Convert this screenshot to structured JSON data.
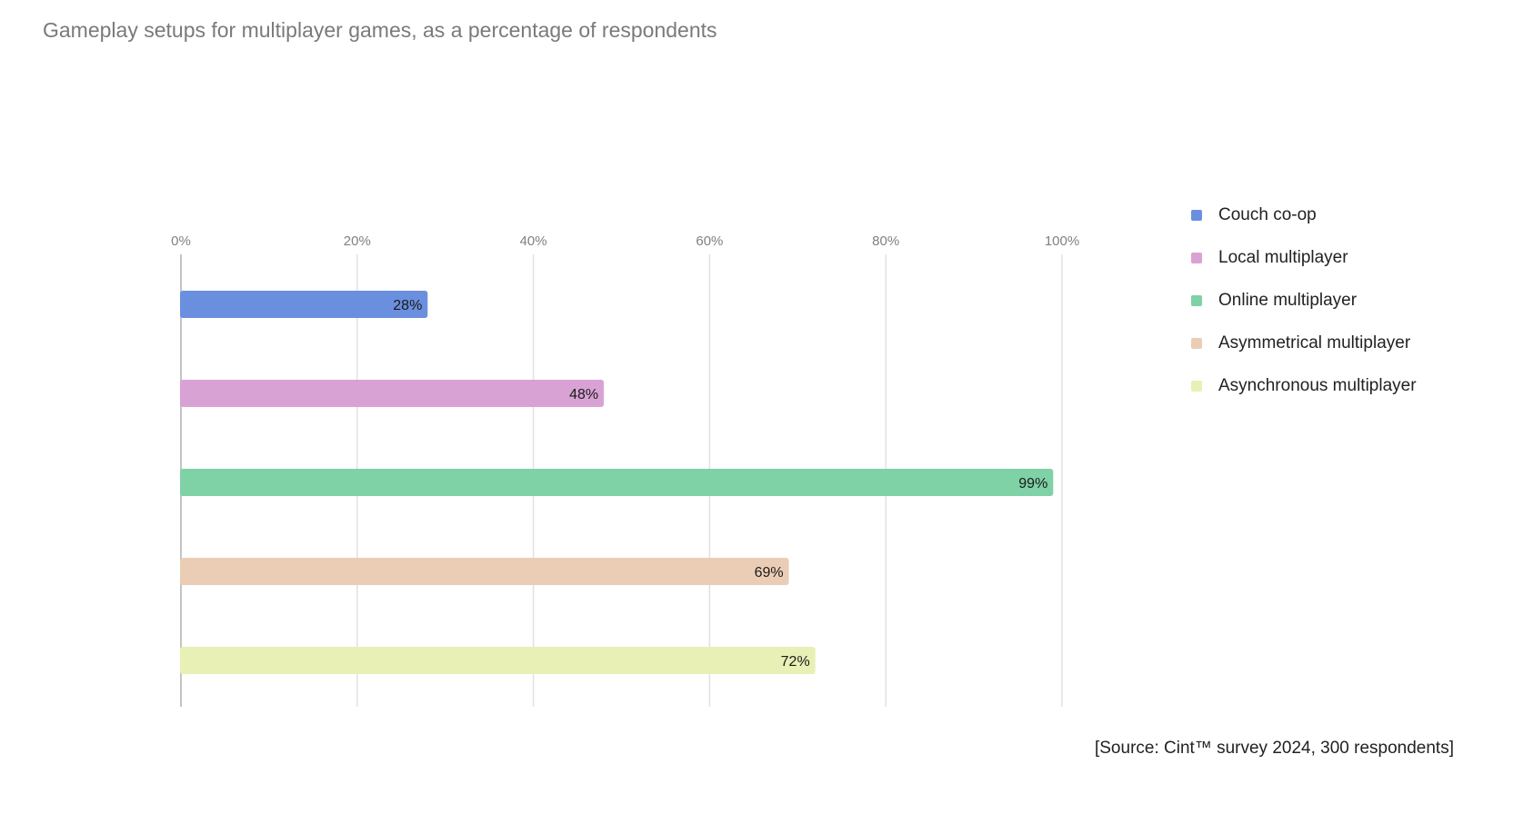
{
  "chart_data": {
    "type": "bar",
    "orientation": "horizontal",
    "title": "Gameplay setups for multiplayer games, as a percentage of respondents",
    "categories": [
      "Couch co-op",
      "Local multiplayer",
      "Online multiplayer",
      "Asymmetrical multiplayer",
      "Asynchronous multiplayer"
    ],
    "values": [
      28,
      48,
      99,
      69,
      72
    ],
    "data_labels": [
      "28%",
      "48%",
      "99%",
      "69%",
      "72%"
    ],
    "colors": [
      "#6b8fdf",
      "#d9a2d4",
      "#7fd1a6",
      "#ebcdb5",
      "#e8f0b5"
    ],
    "xlim": [
      0,
      100
    ],
    "x_ticks": [
      0,
      20,
      40,
      60,
      80,
      100
    ],
    "x_tick_labels": [
      "0%",
      "20%",
      "40%",
      "60%",
      "80%",
      "100%"
    ],
    "x_axis_position": "top",
    "grid": true,
    "legend_position": "right",
    "source": "[Source: Cint™ survey 2024, 300 respondents]"
  }
}
